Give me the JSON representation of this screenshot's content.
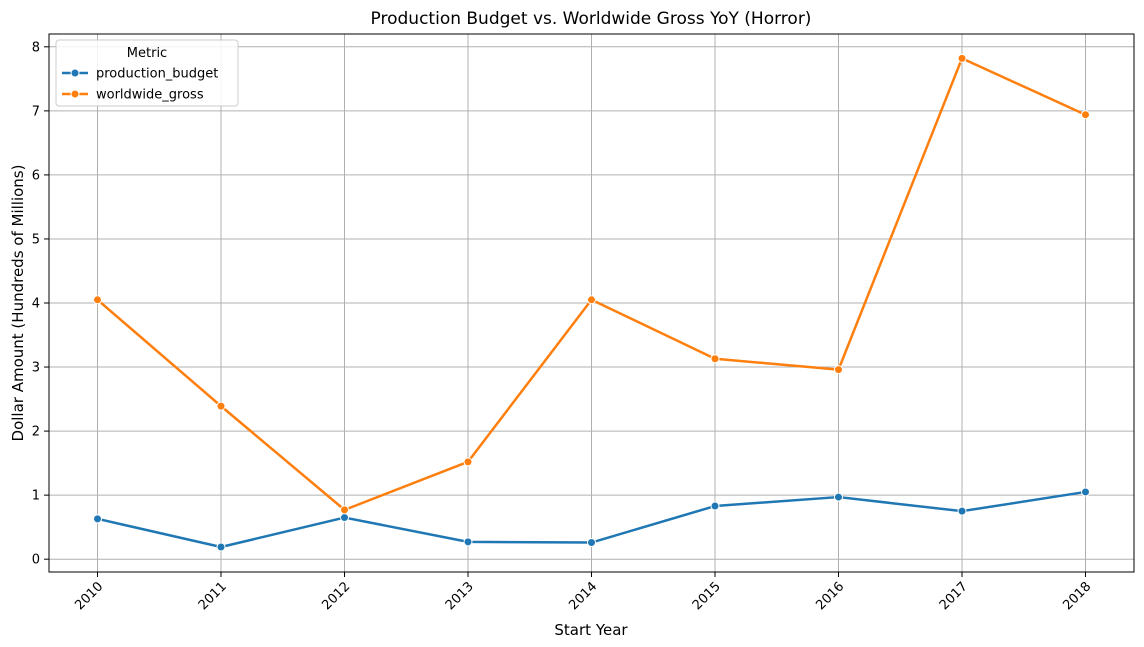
{
  "chart_data": {
    "type": "line",
    "title": "Production Budget vs. Worldwide Gross YoY (Horror)",
    "xlabel": "Start Year",
    "ylabel": "Dollar Amount (Hundreds of Millions)",
    "categories": [
      "2010",
      "2011",
      "2012",
      "2013",
      "2014",
      "2015",
      "2016",
      "2017",
      "2018"
    ],
    "y_ticks": [
      "0",
      "1",
      "2",
      "3",
      "4",
      "5",
      "6",
      "7",
      "8"
    ],
    "ylim": [
      -0.2,
      8.2
    ],
    "grid": true,
    "x_tick_rotation": "45 degrees",
    "legend": {
      "title": "Metric",
      "placement": "top-left"
    },
    "series": [
      {
        "name": "production_budget",
        "color": "#1f77b4",
        "values": [
          0.63,
          0.19,
          0.65,
          0.27,
          0.26,
          0.83,
          0.97,
          0.75,
          1.05
        ]
      },
      {
        "name": "worldwide_gross",
        "color": "#ff7f0e",
        "values": [
          4.05,
          2.39,
          0.77,
          1.52,
          4.05,
          3.13,
          2.96,
          7.82,
          6.94
        ]
      }
    ]
  }
}
